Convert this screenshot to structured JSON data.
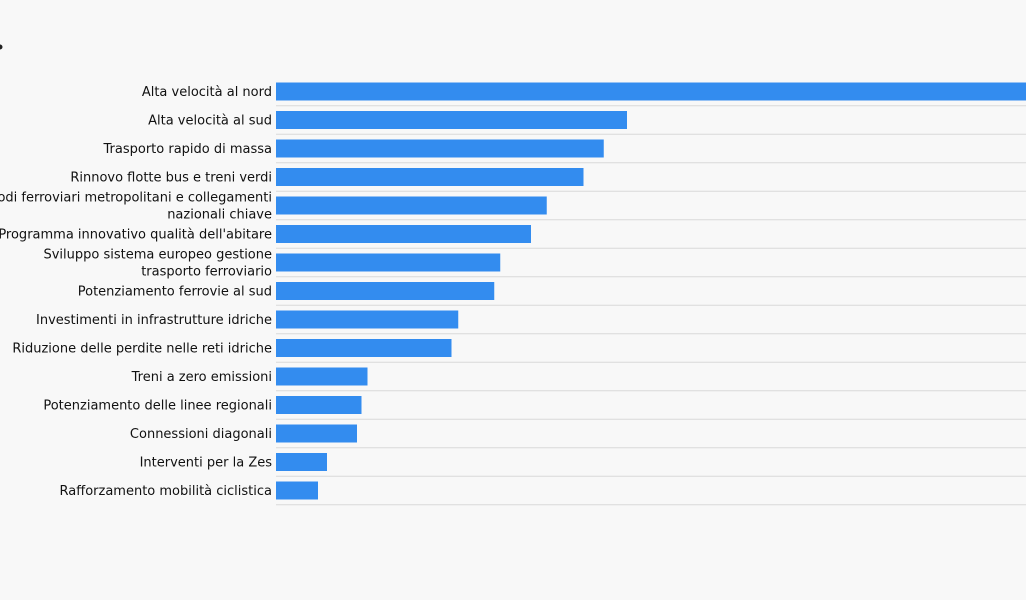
{
  "chart_data": {
    "type": "bar",
    "orientation": "horizontal",
    "title": "",
    "xlabel": "",
    "ylabel": "",
    "grid": false,
    "legend": "none",
    "xlim": [
      0,
      1000
    ],
    "categories": [
      "Alta velocità al nord",
      "Alta velocità al sud",
      "Trasporto rapido di massa",
      "Rinnovo flotte bus e treni verdi",
      "Nodi ferroviari metropolitani e collegamenti nazionali chiave",
      "Programma innovativo qualità dell'abitare",
      "Sviluppo sistema europeo gestione trasporto ferroviario",
      "Potenziamento ferrovie al sud",
      "Investimenti in infrastrutture idriche",
      "Riduzione delle perdite nelle reti idriche",
      "Treni a zero emissioni",
      "Potenziamento delle linee regionali",
      "Connessioni diagonali",
      "Interventi per la Zes",
      "Rafforzamento mobilità ciclistica"
    ],
    "values": [
      1000,
      468,
      437,
      410,
      361,
      340,
      299,
      291,
      243,
      234,
      122,
      114,
      108,
      68,
      56
    ],
    "colors": {
      "bar": "#338cef",
      "row_line": "#d9d9d9",
      "text": "#111111",
      "background": "#f8f8f8"
    }
  }
}
